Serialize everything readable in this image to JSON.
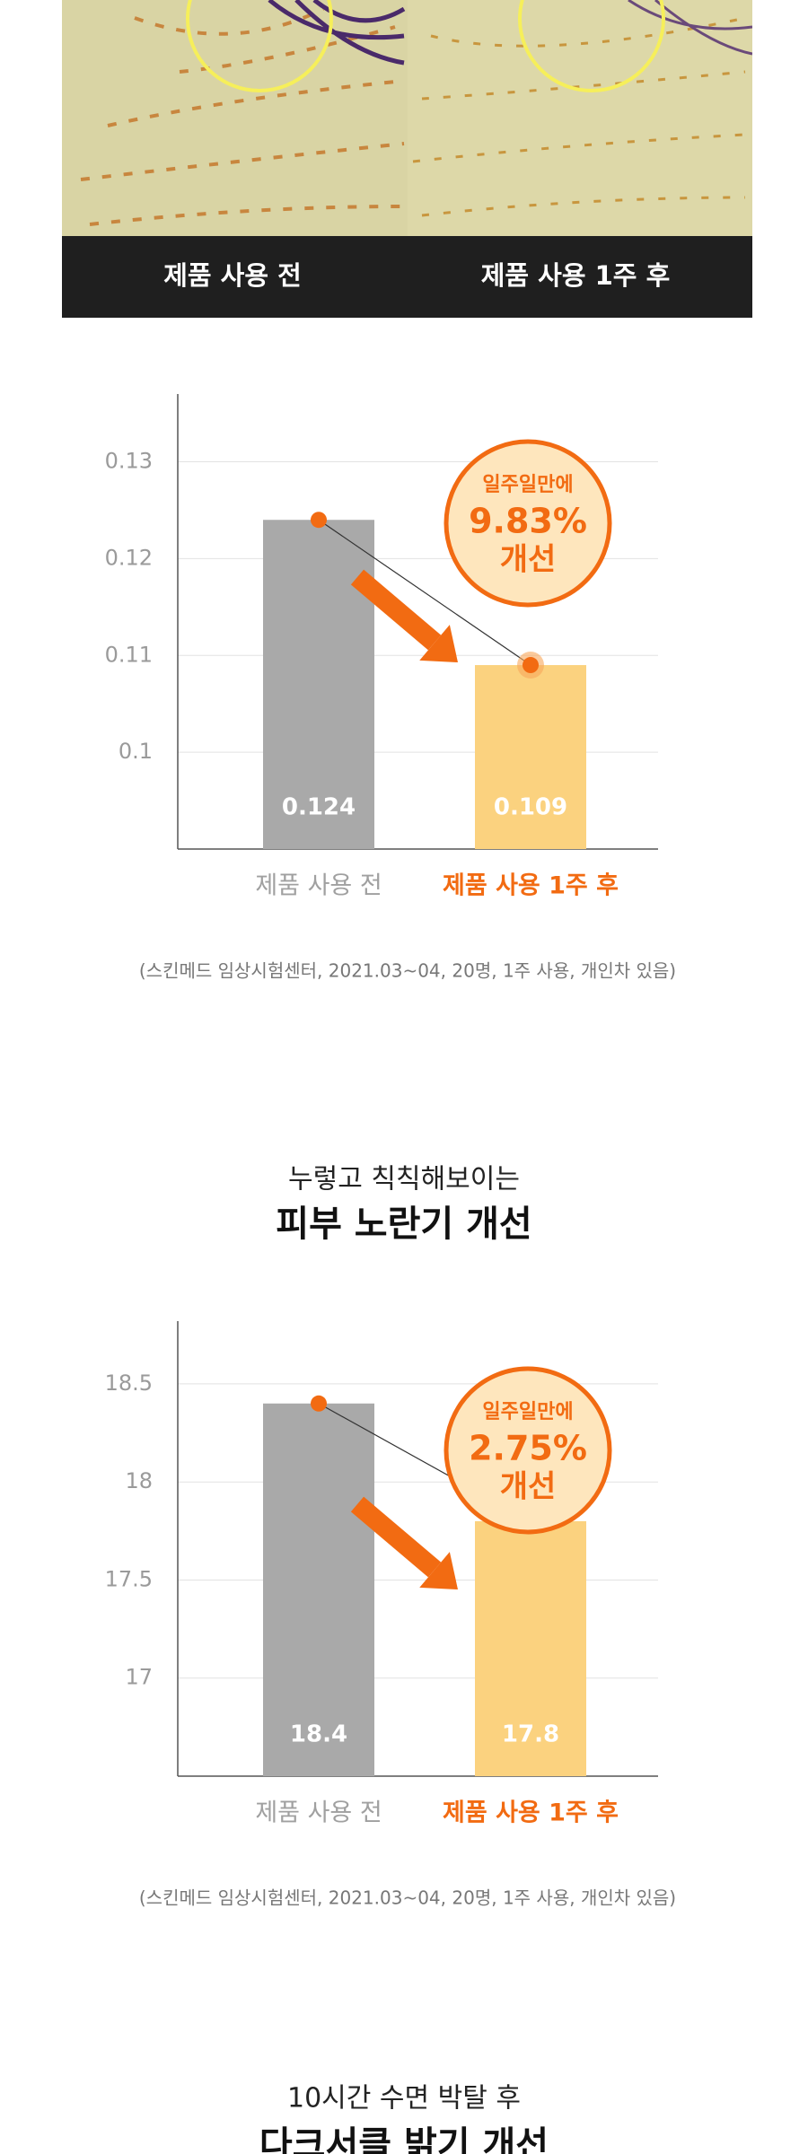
{
  "image_captions": [
    "제품 사용 전",
    "제품 사용 1주 후"
  ],
  "chart_data": [
    {
      "type": "bar",
      "categories": [
        "제품 사용 전",
        "제품 사용 1주 후"
      ],
      "values": [
        0.124,
        0.109
      ],
      "value_labels": [
        "0.124",
        "0.109"
      ],
      "colors": [
        "#a9a9a9",
        "#fbd27f"
      ],
      "ylim": [
        0.09,
        0.137
      ],
      "yticks": [
        0.1,
        0.11,
        0.12,
        0.13
      ],
      "grid": true,
      "annotation": [
        "일주일만에",
        "9.83%",
        "개선"
      ],
      "footnote": "(스킨메드 임상시험센터, 2021.03~04, 20명, 1주 사용, 개인차 있음)"
    },
    {
      "type": "bar",
      "categories": [
        "제품 사용 전",
        "제품 사용 1주 후"
      ],
      "values": [
        18.4,
        17.8
      ],
      "colors": [
        "#a9a9a9",
        "#fbd27f"
      ],
      "ylim": [
        16.5,
        18.82
      ],
      "yticks": [
        17,
        17.5,
        18,
        18.5
      ],
      "grid": true,
      "annotation": [
        "일주일만에",
        "2.75%",
        "개선"
      ],
      "footnote": "(스킨메드 임상시험센터, 2021.03~04, 20명, 1주 사용, 개인차 있음)"
    }
  ],
  "sections": [
    {
      "subtitle": "누렇고 칙칙해보이는",
      "title": "피부 노란기 개선"
    },
    {
      "subtitle": "10시간 수면 박탈 후",
      "title": "다크서클 밝기 개선"
    }
  ]
}
